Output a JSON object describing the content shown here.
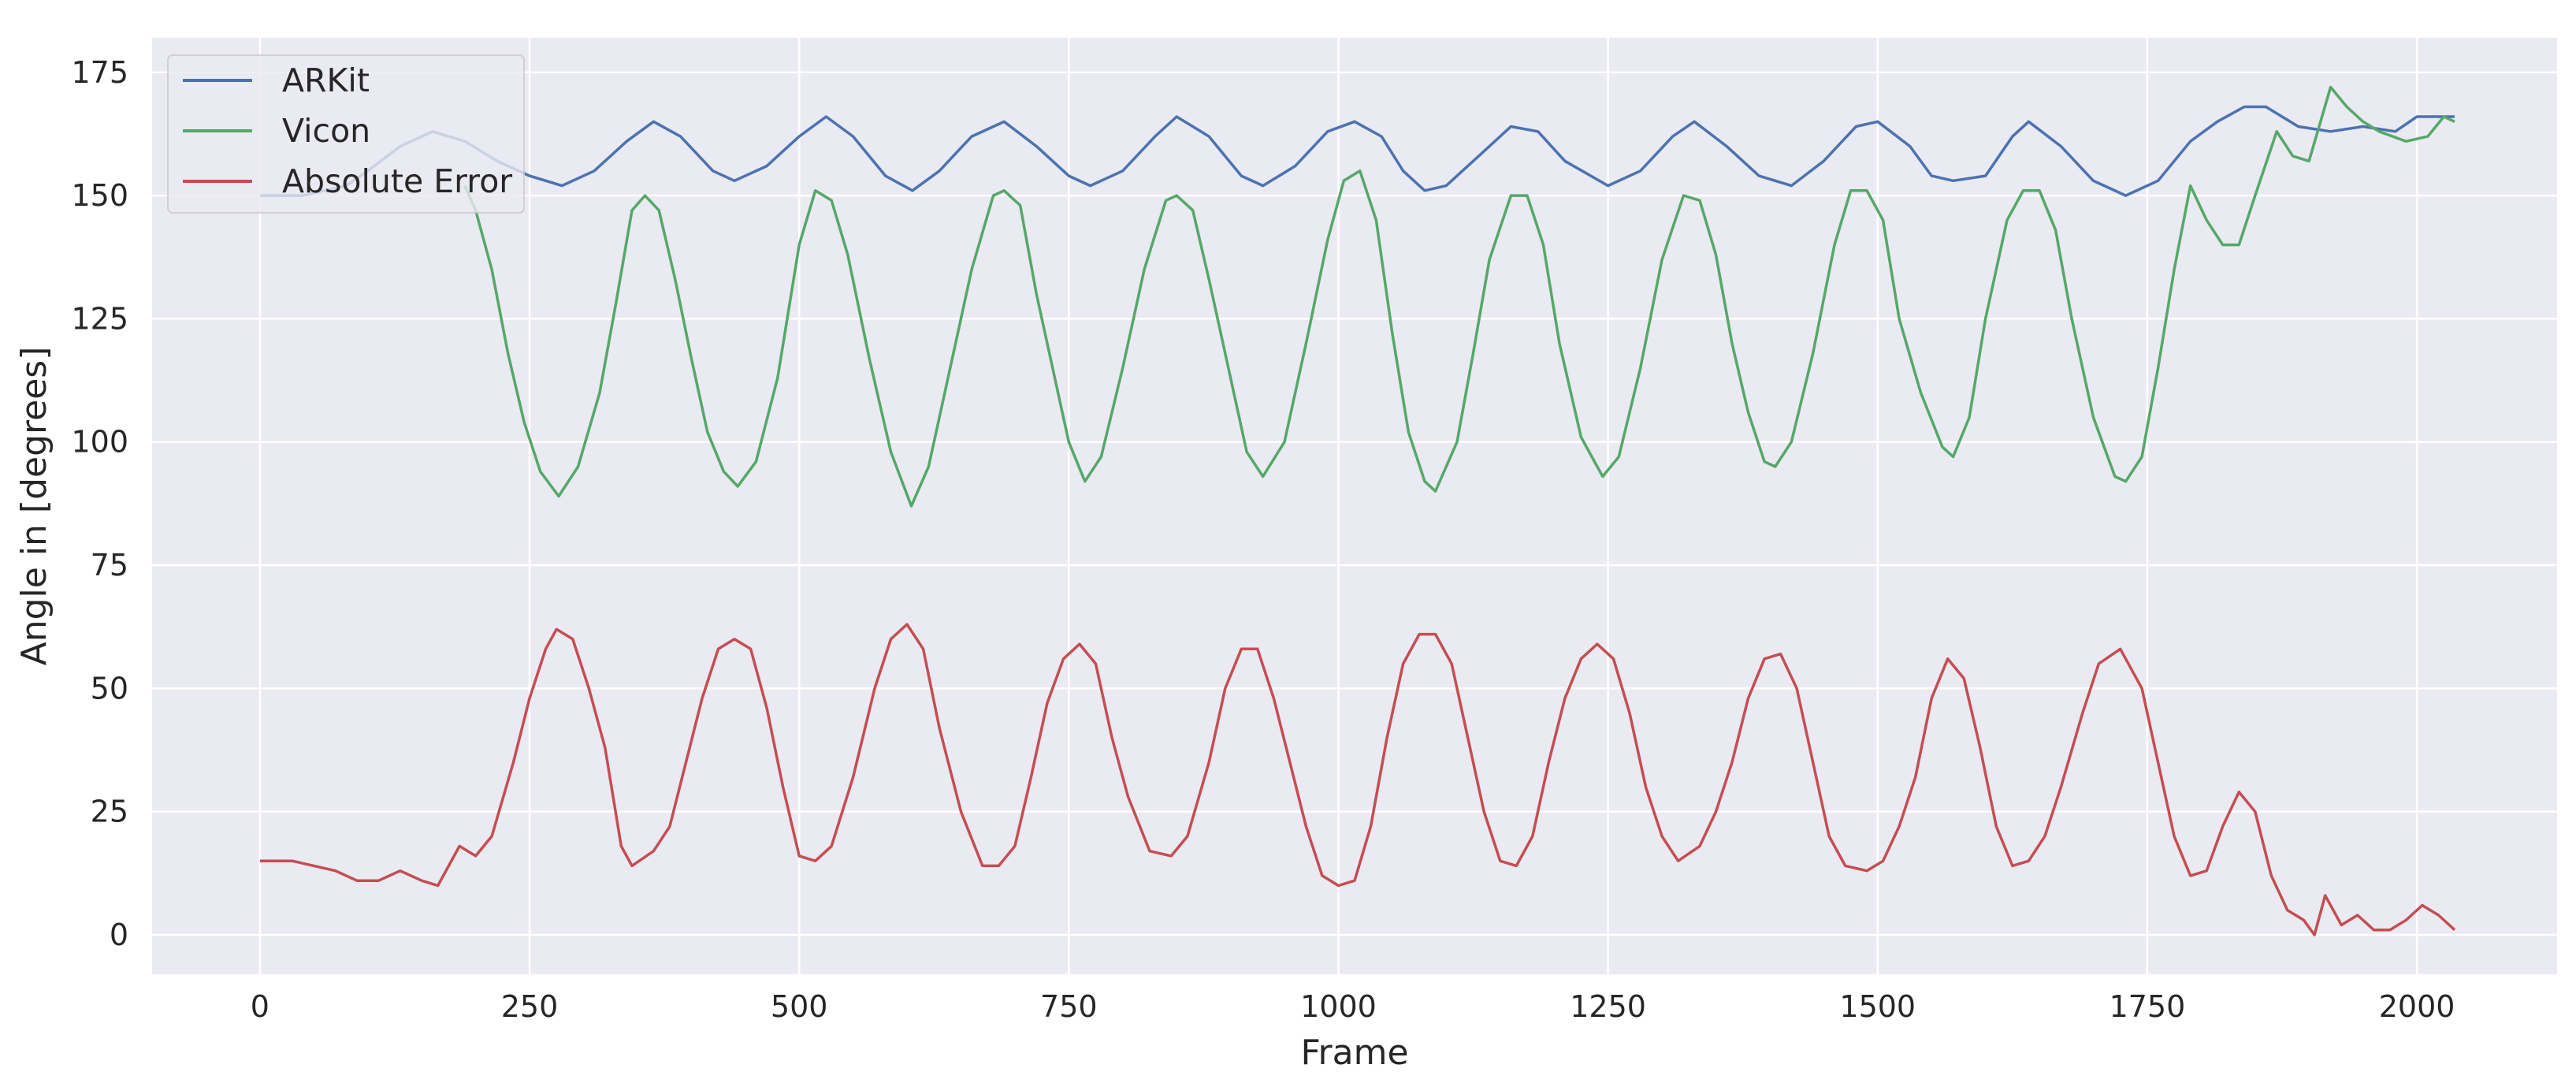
{
  "chart_data": {
    "type": "line",
    "title": "",
    "xlabel": "Frame",
    "ylabel": "Angle in [degrees]",
    "xlim": [
      -100,
      2130
    ],
    "ylim": [
      -8,
      182
    ],
    "xticks": [
      0,
      250,
      500,
      750,
      1000,
      1250,
      1500,
      1750,
      2000
    ],
    "yticks": [
      0,
      25,
      50,
      75,
      100,
      125,
      150,
      175
    ],
    "grid": true,
    "legend_position": "top-left",
    "background_color": "#eaeaf2",
    "grid_color": "#ffffff",
    "series": [
      {
        "name": "ARKit",
        "color": "#4c72b0",
        "points": [
          [
            0,
            150
          ],
          [
            20,
            150
          ],
          [
            40,
            150
          ],
          [
            60,
            151
          ],
          [
            80,
            152
          ],
          [
            100,
            155
          ],
          [
            130,
            160
          ],
          [
            160,
            163
          ],
          [
            190,
            161
          ],
          [
            220,
            157
          ],
          [
            250,
            154
          ],
          [
            280,
            152
          ],
          [
            310,
            155
          ],
          [
            340,
            161
          ],
          [
            365,
            165
          ],
          [
            390,
            162
          ],
          [
            420,
            155
          ],
          [
            440,
            153
          ],
          [
            470,
            156
          ],
          [
            500,
            162
          ],
          [
            525,
            166
          ],
          [
            550,
            162
          ],
          [
            580,
            154
          ],
          [
            605,
            151
          ],
          [
            630,
            155
          ],
          [
            660,
            162
          ],
          [
            690,
            165
          ],
          [
            720,
            160
          ],
          [
            750,
            154
          ],
          [
            770,
            152
          ],
          [
            800,
            155
          ],
          [
            830,
            162
          ],
          [
            850,
            166
          ],
          [
            880,
            162
          ],
          [
            910,
            154
          ],
          [
            930,
            152
          ],
          [
            960,
            156
          ],
          [
            990,
            163
          ],
          [
            1015,
            165
          ],
          [
            1040,
            162
          ],
          [
            1060,
            155
          ],
          [
            1080,
            151
          ],
          [
            1100,
            152
          ],
          [
            1130,
            158
          ],
          [
            1160,
            164
          ],
          [
            1185,
            163
          ],
          [
            1210,
            157
          ],
          [
            1250,
            152
          ],
          [
            1280,
            155
          ],
          [
            1310,
            162
          ],
          [
            1330,
            165
          ],
          [
            1360,
            160
          ],
          [
            1390,
            154
          ],
          [
            1420,
            152
          ],
          [
            1450,
            157
          ],
          [
            1480,
            164
          ],
          [
            1500,
            165
          ],
          [
            1530,
            160
          ],
          [
            1550,
            154
          ],
          [
            1570,
            153
          ],
          [
            1600,
            154
          ],
          [
            1625,
            162
          ],
          [
            1640,
            165
          ],
          [
            1670,
            160
          ],
          [
            1700,
            153
          ],
          [
            1730,
            150
          ],
          [
            1760,
            153
          ],
          [
            1790,
            161
          ],
          [
            1815,
            165
          ],
          [
            1840,
            168
          ],
          [
            1860,
            168
          ],
          [
            1890,
            164
          ],
          [
            1920,
            163
          ],
          [
            1950,
            164
          ],
          [
            1980,
            163
          ],
          [
            2000,
            166
          ],
          [
            2035,
            166
          ]
        ]
      },
      {
        "name": "Vicon",
        "color": "#55a868",
        "points": [
          [
            190,
            152
          ],
          [
            200,
            147
          ],
          [
            215,
            135
          ],
          [
            230,
            118
          ],
          [
            245,
            104
          ],
          [
            260,
            94
          ],
          [
            277,
            89
          ],
          [
            295,
            95
          ],
          [
            315,
            110
          ],
          [
            330,
            128
          ],
          [
            345,
            147
          ],
          [
            357,
            150
          ],
          [
            370,
            147
          ],
          [
            385,
            133
          ],
          [
            400,
            117
          ],
          [
            415,
            102
          ],
          [
            430,
            94
          ],
          [
            443,
            91
          ],
          [
            460,
            96
          ],
          [
            480,
            113
          ],
          [
            500,
            140
          ],
          [
            515,
            151
          ],
          [
            530,
            149
          ],
          [
            545,
            138
          ],
          [
            565,
            117
          ],
          [
            585,
            98
          ],
          [
            604,
            87
          ],
          [
            620,
            95
          ],
          [
            640,
            115
          ],
          [
            660,
            135
          ],
          [
            680,
            150
          ],
          [
            690,
            151
          ],
          [
            705,
            148
          ],
          [
            720,
            130
          ],
          [
            735,
            115
          ],
          [
            750,
            100
          ],
          [
            765,
            92
          ],
          [
            780,
            97
          ],
          [
            800,
            115
          ],
          [
            820,
            135
          ],
          [
            840,
            149
          ],
          [
            850,
            150
          ],
          [
            865,
            147
          ],
          [
            880,
            133
          ],
          [
            900,
            113
          ],
          [
            915,
            98
          ],
          [
            930,
            93
          ],
          [
            950,
            100
          ],
          [
            970,
            120
          ],
          [
            990,
            141
          ],
          [
            1005,
            153
          ],
          [
            1020,
            155
          ],
          [
            1035,
            145
          ],
          [
            1050,
            122
          ],
          [
            1065,
            102
          ],
          [
            1080,
            92
          ],
          [
            1090,
            90
          ],
          [
            1110,
            100
          ],
          [
            1125,
            118
          ],
          [
            1140,
            137
          ],
          [
            1160,
            150
          ],
          [
            1175,
            150
          ],
          [
            1190,
            140
          ],
          [
            1205,
            120
          ],
          [
            1225,
            101
          ],
          [
            1245,
            93
          ],
          [
            1260,
            97
          ],
          [
            1280,
            115
          ],
          [
            1300,
            137
          ],
          [
            1320,
            150
          ],
          [
            1335,
            149
          ],
          [
            1350,
            138
          ],
          [
            1365,
            120
          ],
          [
            1380,
            106
          ],
          [
            1395,
            96
          ],
          [
            1405,
            95
          ],
          [
            1420,
            100
          ],
          [
            1440,
            118
          ],
          [
            1460,
            140
          ],
          [
            1475,
            151
          ],
          [
            1490,
            151
          ],
          [
            1505,
            145
          ],
          [
            1520,
            125
          ],
          [
            1540,
            110
          ],
          [
            1560,
            99
          ],
          [
            1570,
            97
          ],
          [
            1585,
            105
          ],
          [
            1600,
            125
          ],
          [
            1620,
            145
          ],
          [
            1635,
            151
          ],
          [
            1650,
            151
          ],
          [
            1665,
            143
          ],
          [
            1680,
            125
          ],
          [
            1700,
            105
          ],
          [
            1720,
            93
          ],
          [
            1730,
            92
          ],
          [
            1745,
            97
          ],
          [
            1760,
            115
          ],
          [
            1775,
            135
          ],
          [
            1790,
            152
          ],
          [
            1805,
            145
          ],
          [
            1820,
            140
          ],
          [
            1835,
            140
          ],
          [
            1850,
            150
          ],
          [
            1870,
            163
          ],
          [
            1885,
            158
          ],
          [
            1900,
            157
          ],
          [
            1920,
            172
          ],
          [
            1935,
            168
          ],
          [
            1950,
            165
          ],
          [
            1965,
            163
          ],
          [
            1990,
            161
          ],
          [
            2010,
            162
          ],
          [
            2025,
            166
          ],
          [
            2035,
            165
          ]
        ]
      },
      {
        "name": "Absolute Error",
        "color": "#c44e52",
        "points": [
          [
            0,
            15
          ],
          [
            15,
            15
          ],
          [
            30,
            15
          ],
          [
            50,
            14
          ],
          [
            70,
            13
          ],
          [
            90,
            11
          ],
          [
            110,
            11
          ],
          [
            130,
            13
          ],
          [
            150,
            11
          ],
          [
            165,
            10
          ],
          [
            185,
            18
          ],
          [
            200,
            16
          ],
          [
            215,
            20
          ],
          [
            235,
            35
          ],
          [
            250,
            48
          ],
          [
            265,
            58
          ],
          [
            275,
            62
          ],
          [
            290,
            60
          ],
          [
            305,
            50
          ],
          [
            320,
            38
          ],
          [
            335,
            18
          ],
          [
            345,
            14
          ],
          [
            365,
            17
          ],
          [
            380,
            22
          ],
          [
            395,
            35
          ],
          [
            410,
            48
          ],
          [
            425,
            58
          ],
          [
            440,
            60
          ],
          [
            455,
            58
          ],
          [
            470,
            46
          ],
          [
            485,
            30
          ],
          [
            500,
            16
          ],
          [
            515,
            15
          ],
          [
            530,
            18
          ],
          [
            550,
            32
          ],
          [
            570,
            50
          ],
          [
            585,
            60
          ],
          [
            600,
            63
          ],
          [
            615,
            58
          ],
          [
            630,
            42
          ],
          [
            650,
            25
          ],
          [
            670,
            14
          ],
          [
            685,
            14
          ],
          [
            700,
            18
          ],
          [
            715,
            32
          ],
          [
            730,
            47
          ],
          [
            745,
            56
          ],
          [
            760,
            59
          ],
          [
            775,
            55
          ],
          [
            790,
            40
          ],
          [
            805,
            28
          ],
          [
            825,
            17
          ],
          [
            845,
            16
          ],
          [
            860,
            20
          ],
          [
            880,
            35
          ],
          [
            895,
            50
          ],
          [
            910,
            58
          ],
          [
            925,
            58
          ],
          [
            940,
            48
          ],
          [
            955,
            35
          ],
          [
            970,
            22
          ],
          [
            985,
            12
          ],
          [
            1000,
            10
          ],
          [
            1015,
            11
          ],
          [
            1030,
            22
          ],
          [
            1045,
            40
          ],
          [
            1060,
            55
          ],
          [
            1075,
            61
          ],
          [
            1090,
            61
          ],
          [
            1105,
            55
          ],
          [
            1120,
            40
          ],
          [
            1135,
            25
          ],
          [
            1150,
            15
          ],
          [
            1165,
            14
          ],
          [
            1180,
            20
          ],
          [
            1195,
            35
          ],
          [
            1210,
            48
          ],
          [
            1225,
            56
          ],
          [
            1240,
            59
          ],
          [
            1255,
            56
          ],
          [
            1270,
            45
          ],
          [
            1285,
            30
          ],
          [
            1300,
            20
          ],
          [
            1315,
            15
          ],
          [
            1335,
            18
          ],
          [
            1350,
            25
          ],
          [
            1365,
            35
          ],
          [
            1380,
            48
          ],
          [
            1395,
            56
          ],
          [
            1410,
            57
          ],
          [
            1425,
            50
          ],
          [
            1440,
            35
          ],
          [
            1455,
            20
          ],
          [
            1470,
            14
          ],
          [
            1490,
            13
          ],
          [
            1505,
            15
          ],
          [
            1520,
            22
          ],
          [
            1535,
            32
          ],
          [
            1550,
            48
          ],
          [
            1565,
            56
          ],
          [
            1580,
            52
          ],
          [
            1595,
            38
          ],
          [
            1610,
            22
          ],
          [
            1625,
            14
          ],
          [
            1640,
            15
          ],
          [
            1655,
            20
          ],
          [
            1670,
            30
          ],
          [
            1690,
            45
          ],
          [
            1705,
            55
          ],
          [
            1725,
            58
          ],
          [
            1745,
            50
          ],
          [
            1760,
            35
          ],
          [
            1775,
            20
          ],
          [
            1790,
            12
          ],
          [
            1805,
            13
          ],
          [
            1820,
            22
          ],
          [
            1835,
            29
          ],
          [
            1850,
            25
          ],
          [
            1865,
            12
          ],
          [
            1880,
            5
          ],
          [
            1895,
            3
          ],
          [
            1905,
            0
          ],
          [
            1915,
            8
          ],
          [
            1930,
            2
          ],
          [
            1945,
            4
          ],
          [
            1960,
            1
          ],
          [
            1975,
            1
          ],
          [
            1990,
            3
          ],
          [
            2005,
            6
          ],
          [
            2020,
            4
          ],
          [
            2035,
            1
          ]
        ]
      }
    ]
  }
}
